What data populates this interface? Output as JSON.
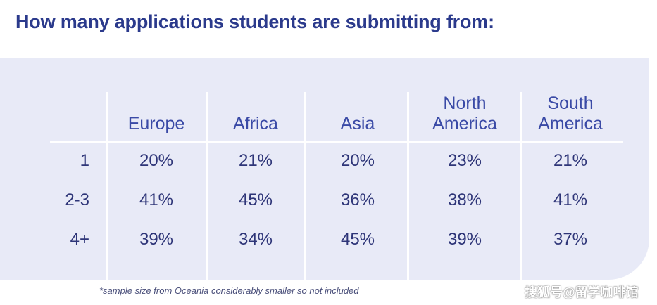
{
  "title": "How many applications students are submitting from:",
  "footnote": "*sample size from Oceania considerably smaller so not included",
  "watermark": "搜狐号@留学咖啡馆",
  "chart_data": {
    "type": "table",
    "columns": [
      {
        "line1": "",
        "line2": "Europe"
      },
      {
        "line1": "",
        "line2": "Africa"
      },
      {
        "line1": "",
        "line2": "Asia"
      },
      {
        "line1": "North",
        "line2": "America"
      },
      {
        "line1": "South",
        "line2": "America"
      }
    ],
    "rows": [
      {
        "label": "1",
        "cells": [
          "20%",
          "21%",
          "20%",
          "23%",
          "21%"
        ]
      },
      {
        "label": "2-3",
        "cells": [
          "41%",
          "45%",
          "36%",
          "38%",
          "41%"
        ]
      },
      {
        "label": "4+",
        "cells": [
          "39%",
          "34%",
          "45%",
          "39%",
          "37%"
        ]
      }
    ]
  }
}
